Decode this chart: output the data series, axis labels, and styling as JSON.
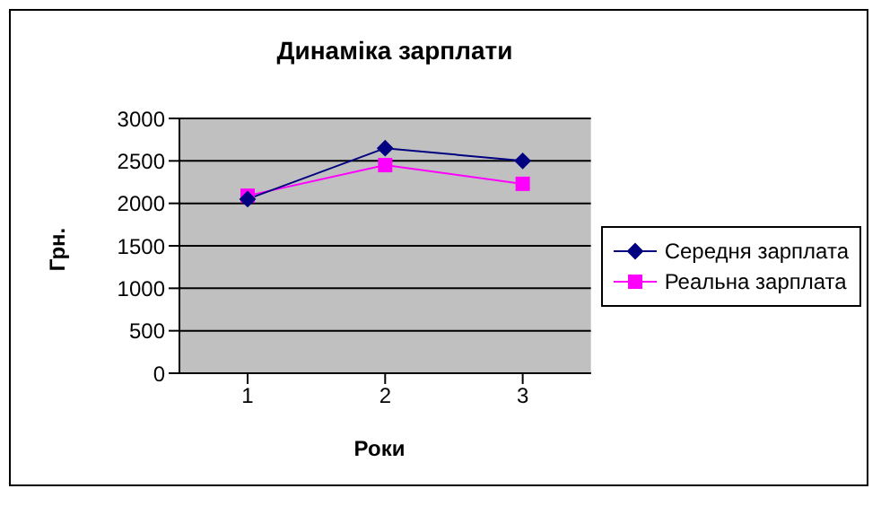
{
  "chart_data": {
    "type": "line",
    "title": "Динаміка зарплати",
    "xlabel": "Роки",
    "ylabel": "Грн.",
    "categories": [
      "1",
      "2",
      "3"
    ],
    "series": [
      {
        "name": "Середня зарплата",
        "color": "#000080",
        "values": [
          2050,
          2650,
          2500
        ],
        "marker": "diamond"
      },
      {
        "name": "Реальна зарплата",
        "color": "#ff00ff",
        "values": [
          2090,
          2450,
          2230
        ],
        "marker": "square"
      }
    ],
    "ylim": [
      0,
      3000
    ],
    "yticks": [
      0,
      500,
      1000,
      1500,
      2000,
      2500,
      3000
    ],
    "grid": "y",
    "legend": "right"
  }
}
